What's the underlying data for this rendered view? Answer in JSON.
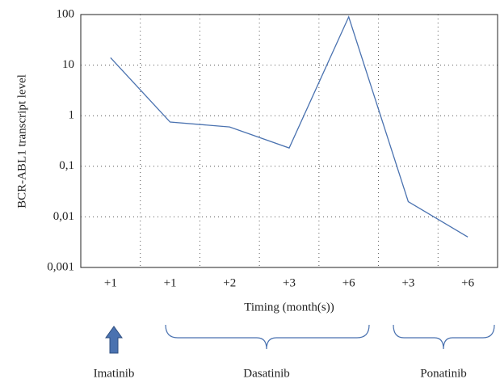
{
  "chart_data": {
    "type": "line",
    "y_label": "BCR-ABL1 transcript level",
    "x_label": "Timing (month(s))",
    "categories": [
      "+1",
      "+1",
      "+2",
      "+3",
      "+6",
      "+3",
      "+6"
    ],
    "series": [
      {
        "color": "#4a72b0",
        "values": [
          14,
          0.75,
          0.6,
          0.23,
          90,
          0.02,
          0.004
        ]
      }
    ],
    "log_scale": true,
    "ylim": [
      0.001,
      100
    ],
    "yticks": [
      {
        "value": 0.001,
        "label": "0,001"
      },
      {
        "value": 0.01,
        "label": "0,01"
      },
      {
        "value": 0.1,
        "label": "0,1"
      },
      1,
      10,
      100
    ],
    "grid": true,
    "annotations": [
      "Imatinib",
      "Dasatinib",
      "Ponatinib"
    ]
  }
}
